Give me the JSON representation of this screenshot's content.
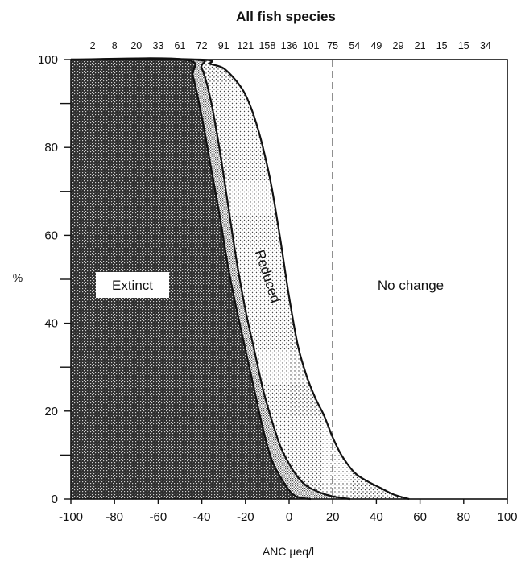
{
  "chart_data": {
    "type": "area",
    "title": "All fish species",
    "xlabel": "ANC µeq/l",
    "ylabel": "%",
    "xlim": [
      -100,
      100
    ],
    "ylim": [
      0,
      100
    ],
    "x_ticks": [
      -100,
      -80,
      -60,
      -40,
      -20,
      0,
      20,
      40,
      60,
      80,
      100
    ],
    "y_ticks": [
      0,
      20,
      40,
      60,
      80,
      100
    ],
    "top_counts": [
      "2",
      "8",
      "20",
      "33",
      "61",
      "72",
      "91",
      "121",
      "158",
      "136",
      "101",
      "75",
      "54",
      "49",
      "29",
      "21",
      "15",
      "15",
      "34"
    ],
    "reference_line_x": 20,
    "regions": [
      {
        "label": "Extinct",
        "pattern": "dense-crosshatch"
      },
      {
        "label": "Reduced",
        "pattern": "sparse-dots"
      },
      {
        "label": "No change",
        "pattern": "none"
      }
    ],
    "series": [
      {
        "name": "Extinct",
        "x": [
          -100,
          -48,
          -44,
          -40,
          -36,
          -32,
          -28,
          -24,
          -20,
          -16,
          -12,
          -8,
          -4,
          0,
          2,
          5,
          10
        ],
        "y": [
          100,
          100,
          96,
          87,
          76,
          65,
          53,
          43,
          34,
          25,
          16,
          9,
          5,
          2,
          1,
          0.3,
          0
        ]
      },
      {
        "name": "boundary-2",
        "x": [
          -100,
          -44,
          -40,
          -36,
          -32,
          -28,
          -24,
          -20,
          -16,
          -12,
          -8,
          -4,
          0,
          4,
          8,
          14,
          20,
          28
        ],
        "y": [
          100,
          100,
          98,
          91,
          80,
          67,
          54,
          43,
          34,
          25,
          18,
          12,
          8,
          5,
          3,
          1.5,
          0.6,
          0
        ]
      },
      {
        "name": "boundary-3",
        "x": [
          -100,
          -41,
          -36,
          -30,
          -24,
          -20,
          -16,
          -12,
          -8,
          -4,
          0,
          4,
          8,
          12,
          16,
          20,
          24,
          30,
          36,
          42,
          48,
          55
        ],
        "y": [
          100,
          100,
          99,
          98,
          95,
          92,
          87,
          80,
          71,
          59,
          46,
          35,
          28,
          23,
          19,
          14,
          10,
          6,
          4,
          2.5,
          1,
          0
        ]
      }
    ]
  }
}
